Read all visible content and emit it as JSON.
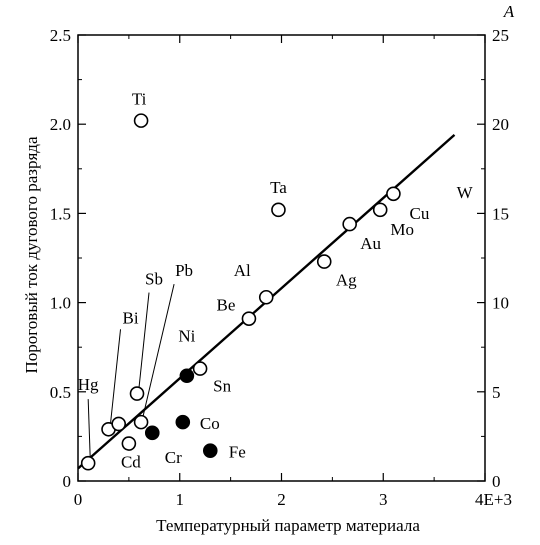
{
  "chart_data": {
    "type": "scatter",
    "title": "",
    "xlabel": "Температурный параметр материала",
    "ylabel": "Пороговый ток дугового разряда",
    "y2label": "A",
    "xlim": [
      0,
      4
    ],
    "ylim": [
      0,
      2.5
    ],
    "y2lim": [
      0,
      25
    ],
    "x_ticks": [
      "0",
      "1",
      "2",
      "3",
      "4E+3"
    ],
    "y_ticks": [
      "0",
      "0.5",
      "1.0",
      "1.5",
      "2.0",
      "2.5"
    ],
    "y2_ticks": [
      "0",
      "5",
      "10",
      "15",
      "20",
      "25"
    ],
    "grid": false,
    "fit_line": {
      "x": [
        0,
        3.7
      ],
      "y": [
        0.07,
        1.94
      ]
    },
    "series": [
      {
        "marker": "open-circle",
        "points": [
          {
            "label": "Hg",
            "x": 0.1,
            "y": 0.1
          },
          {
            "label": "Bi",
            "x": 0.3,
            "y": 0.29
          },
          {
            "label": "",
            "x": 0.4,
            "y": 0.32
          },
          {
            "label": "Cd",
            "x": 0.5,
            "y": 0.21
          },
          {
            "label": "Sb",
            "x": 0.58,
            "y": 0.49
          },
          {
            "label": "Pb",
            "x": 0.62,
            "y": 0.33
          },
          {
            "label": "Ti",
            "x": 0.62,
            "y": 2.02
          },
          {
            "label": "Sn",
            "x": 1.2,
            "y": 0.63
          },
          {
            "label": "Be",
            "x": 1.68,
            "y": 0.91
          },
          {
            "label": "Al",
            "x": 1.85,
            "y": 1.03
          },
          {
            "label": "Ta",
            "x": 1.97,
            "y": 1.52
          },
          {
            "label": "Ag",
            "x": 2.42,
            "y": 1.23
          },
          {
            "label": "Au",
            "x": 2.67,
            "y": 1.44
          },
          {
            "label": "Mo",
            "x": 2.97,
            "y": 1.52
          },
          {
            "label": "Cu",
            "x": 3.1,
            "y": 1.61
          }
        ]
      },
      {
        "marker": "filled-circle",
        "points": [
          {
            "label": "Cr",
            "x": 0.73,
            "y": 0.27
          },
          {
            "label": "Co",
            "x": 1.03,
            "y": 0.33
          },
          {
            "label": "Ni",
            "x": 1.07,
            "y": 0.59
          },
          {
            "label": "Fe",
            "x": 1.3,
            "y": 0.17
          }
        ]
      }
    ],
    "annotations": [
      {
        "text": "W",
        "x": 3.8,
        "y": 1.62
      }
    ]
  }
}
